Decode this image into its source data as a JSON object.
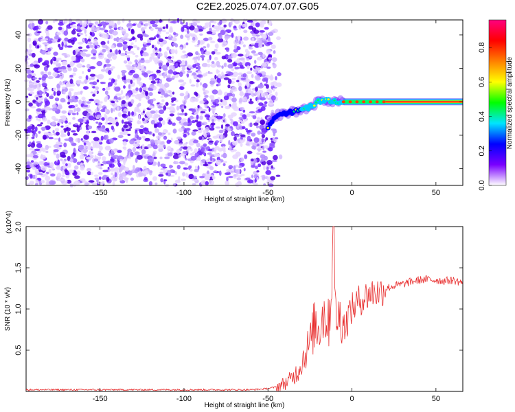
{
  "title": "C2E2.2025.074.07.07.G05",
  "chart_data": [
    {
      "type": "heatmap",
      "title": "C2E2.2025.074.07.07.G05",
      "xlabel": "Height of straight line (km)",
      "ylabel": "Frequency (Hz)",
      "xlim": [
        -194,
        66
      ],
      "ylim": [
        -50,
        49
      ],
      "xticks": [
        -150,
        -100,
        -50,
        0,
        50
      ],
      "yticks": [
        -40,
        -20,
        0,
        20,
        40
      ],
      "colorbar": {
        "label": "Normalized spectral amplitude",
        "range": [
          0,
          0.96
        ],
        "ticks": [
          0.0,
          0.2,
          0.4,
          0.6,
          0.8
        ],
        "colormap": [
          "#ffffff",
          "#7a00ff",
          "#0000ff",
          "#00e5ff",
          "#00ff00",
          "#ffff00",
          "#ff8000",
          "#ff0000",
          "#ff0080"
        ]
      },
      "features": {
        "noise_region_x": [
          -194,
          -46
        ],
        "ridge": [
          [
            -50,
            -15
          ],
          [
            -45,
            -8
          ],
          [
            -40,
            -7
          ],
          [
            -35,
            -6
          ],
          [
            -30,
            -5
          ],
          [
            -25,
            -3
          ],
          [
            -20,
            0
          ],
          [
            -15,
            1
          ],
          [
            -10,
            0
          ],
          [
            0,
            0
          ],
          [
            20,
            0
          ],
          [
            66,
            0
          ]
        ]
      }
    },
    {
      "type": "line",
      "xlabel": "Height of straight line (km)",
      "ylabel": "SNR (10 * v/v)",
      "y_multiplier": "(x10^4)",
      "xlim": [
        -194,
        66
      ],
      "ylim": [
        0,
        2.0
      ],
      "xticks": [
        -150,
        -100,
        -50,
        0,
        50
      ],
      "yticks": [
        0.5,
        1.0,
        1.5,
        2.0
      ],
      "grid": false,
      "series": [
        {
          "color": "#e83030",
          "x": [
            -194,
            -150,
            -100,
            -60,
            -52,
            -46,
            -42,
            -38,
            -35,
            -32,
            -30,
            -28,
            -26,
            -24,
            -22,
            -20,
            -18,
            -16,
            -14,
            -12,
            -11,
            -10,
            -9,
            -8,
            -6,
            -4,
            -2,
            0,
            4,
            8,
            12,
            16,
            20,
            25,
            30,
            35,
            40,
            45,
            50,
            55,
            60,
            66
          ],
          "y": [
            0.02,
            0.02,
            0.02,
            0.02,
            0.03,
            0.05,
            0.08,
            0.12,
            0.18,
            0.25,
            0.35,
            0.45,
            0.55,
            0.65,
            0.85,
            0.75,
            0.9,
            0.95,
            0.8,
            1.35,
            2.0,
            0.9,
            1.0,
            0.85,
            0.95,
            0.75,
            0.95,
            1.0,
            1.1,
            1.15,
            1.2,
            1.2,
            1.25,
            1.28,
            1.3,
            1.33,
            1.35,
            1.36,
            1.35,
            1.34,
            1.35,
            1.32
          ]
        }
      ]
    }
  ]
}
